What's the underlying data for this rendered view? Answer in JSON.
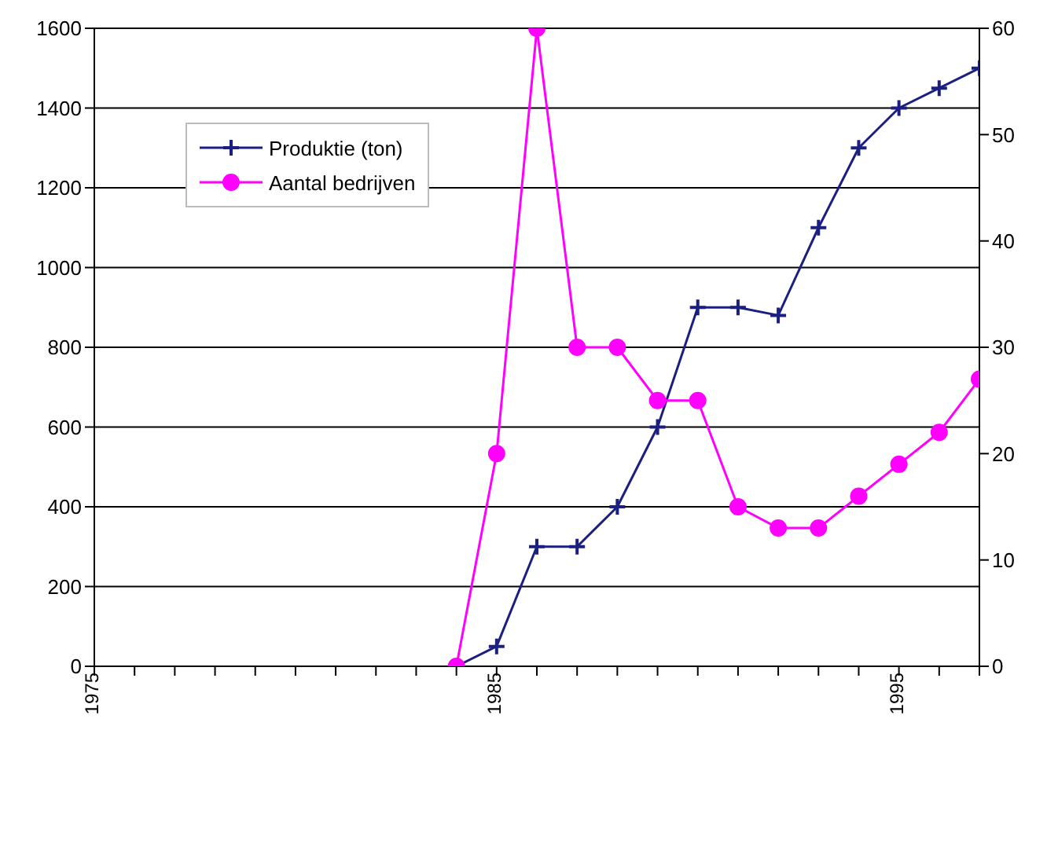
{
  "chart_data": {
    "type": "line",
    "x": [
      1984,
      1985,
      1986,
      1987,
      1988,
      1989,
      1990,
      1991,
      1992,
      1993,
      1994,
      1995,
      1996,
      1997
    ],
    "series": [
      {
        "name": "Produktie (ton)",
        "color": "#1a1f80",
        "marker": "cross",
        "values": [
          0,
          50,
          300,
          300,
          400,
          600,
          900,
          900,
          880,
          1100,
          1300,
          1400,
          1450,
          1500
        ]
      },
      {
        "name": "Aantal bedrijven",
        "color": "#ff00ff",
        "marker": "circle",
        "axis": "y2",
        "values": [
          0,
          20,
          60,
          30,
          30,
          25,
          25,
          15,
          13,
          13,
          16,
          19,
          22,
          27
        ]
      }
    ],
    "xlim": [
      1975,
      1997
    ],
    "xticks": [
      1975,
      {
        "value": 1976,
        "label": null
      },
      {
        "value": 1977,
        "label": null
      },
      {
        "value": 1978,
        "label": null
      },
      {
        "value": 1979,
        "label": null
      },
      {
        "value": 1980,
        "label": null
      },
      {
        "value": 1981,
        "label": null
      },
      {
        "value": 1982,
        "label": null
      },
      {
        "value": 1983,
        "label": null
      },
      {
        "value": 1984,
        "label": null
      },
      1985,
      {
        "value": 1986,
        "label": null
      },
      {
        "value": 1987,
        "label": null
      },
      {
        "value": 1988,
        "label": null
      },
      {
        "value": 1989,
        "label": null
      },
      {
        "value": 1990,
        "label": null
      },
      {
        "value": 1991,
        "label": null
      },
      {
        "value": 1992,
        "label": null
      },
      {
        "value": 1993,
        "label": null
      },
      {
        "value": 1994,
        "label": null
      },
      1995,
      {
        "value": 1996,
        "label": null
      },
      {
        "value": 1997,
        "label": null
      }
    ],
    "ylim": [
      0,
      1600
    ],
    "yticks": [
      0,
      200,
      400,
      600,
      800,
      1000,
      1200,
      1400,
      1600
    ],
    "y2lim": [
      0,
      60
    ],
    "y2ticks": [
      0,
      10,
      20,
      30,
      40,
      50,
      60
    ],
    "grid": "y",
    "legend": "top left"
  }
}
